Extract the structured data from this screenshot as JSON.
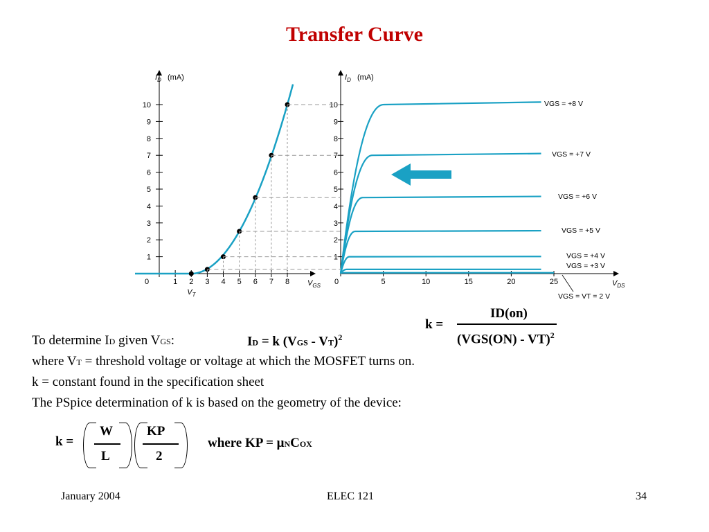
{
  "slide": {
    "title": "Transfer Curve",
    "footer": {
      "date": "January 2004",
      "course": "ELEC 121",
      "page": "34"
    }
  },
  "colors": {
    "title": "#c00000",
    "curve": "#1aa1c4",
    "arrow": "#1aa1c4",
    "axis": "#000000",
    "guide": "#999999"
  },
  "chart_data": [
    {
      "type": "line",
      "xlabel": "VGS",
      "ylabel": "ID (mA)",
      "x_ticks": [
        "0",
        "1",
        "2",
        "3",
        "4",
        "5",
        "6",
        "7",
        "8"
      ],
      "y_ticks": [
        "1",
        "2",
        "3",
        "4",
        "5",
        "6",
        "7",
        "8",
        "9",
        "10"
      ],
      "xlim": [
        0,
        8.8
      ],
      "ylim": [
        0,
        11
      ],
      "vt_label": "VT",
      "points": [
        [
          2,
          0
        ],
        [
          3,
          0.25
        ],
        [
          4,
          1
        ],
        [
          5,
          2.5
        ],
        [
          6,
          4.5
        ],
        [
          7,
          7
        ],
        [
          8,
          10
        ]
      ]
    },
    {
      "type": "line",
      "xlabel": "VDS",
      "ylabel": "ID (mA)",
      "x_ticks": [
        "0",
        "5",
        "10",
        "15",
        "20",
        "25"
      ],
      "y_ticks": [
        "1",
        "2",
        "3",
        "4",
        "5",
        "6",
        "7",
        "8",
        "9",
        "10"
      ],
      "xlim": [
        0,
        27
      ],
      "ylim": [
        0,
        11
      ],
      "series": [
        {
          "name": "VGS = +8 V",
          "sat": 10
        },
        {
          "name": "VGS = +7 V",
          "sat": 7
        },
        {
          "name": "VGS = +6 V",
          "sat": 4.5
        },
        {
          "name": "VGS = +5 V",
          "sat": 2.5
        },
        {
          "name": "VGS = +4 V",
          "sat": 1
        },
        {
          "name": "VGS = +3 V",
          "sat": 0.25
        },
        {
          "name": "VGS = VT = 2 V",
          "sat": 0
        }
      ]
    }
  ],
  "text": {
    "k_def_lhs": "k =",
    "k_def_num": "ID(on)",
    "k_def_den": "(VGS(ON) - VT)",
    "k_def_exp": "2",
    "line1_prefix": "To determine I",
    "line1_sub1": "D",
    "line1_mid": " given V",
    "line1_sub2": "GS",
    "line1_colon": ":",
    "eq_id": "I",
    "eq_id_sub": "D",
    "eq_body": " = k (V",
    "eq_gs_sub": "GS",
    "eq_minus": " - V",
    "eq_t_sub": "T",
    "eq_close": ")",
    "eq_exp": "2",
    "line2_a": "where V",
    "line2_sub": "T",
    "line2_b": " = threshold voltage or voltage at which the MOSFET turns on.",
    "line3": "k = constant found in the specification sheet",
    "line4": "The PSpice determination of k is based on the geometry of the device:",
    "pspice_k": "k =",
    "pspice_w": "W",
    "pspice_l": "L",
    "pspice_kp": "KP",
    "pspice_2": "2",
    "where_kp": "where KP = μ",
    "where_n": "N",
    "where_c": "C",
    "where_ox": "OX"
  }
}
